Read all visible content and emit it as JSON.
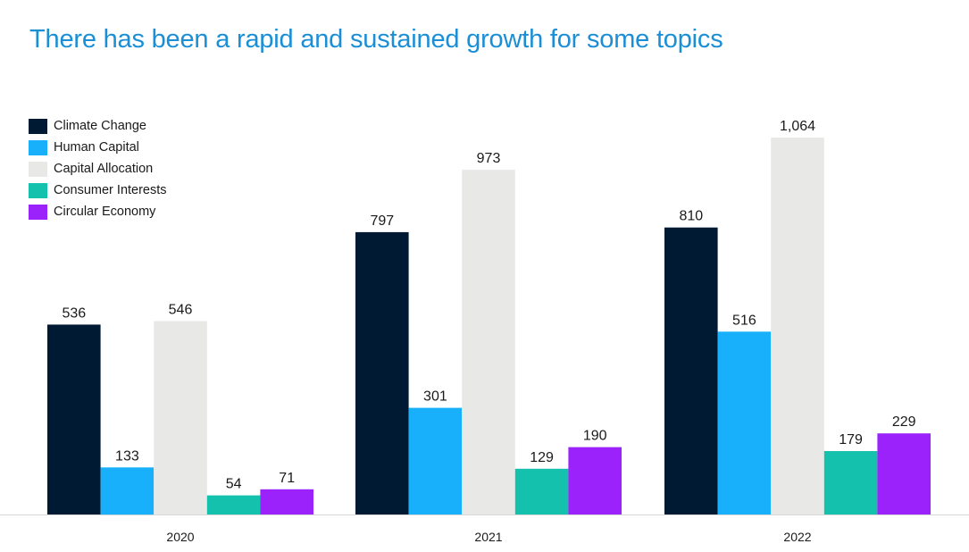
{
  "chart_data": {
    "type": "bar",
    "title": "There has been a rapid and sustained growth for some topics",
    "categories": [
      "2020",
      "2021",
      "2022"
    ],
    "series": [
      {
        "name": "Climate Change",
        "color": "#011a33",
        "values": [
          536,
          797,
          810
        ],
        "labels": [
          "536",
          "797",
          "810"
        ]
      },
      {
        "name": "Human Capital",
        "color": "#18b0fb",
        "values": [
          133,
          301,
          516
        ],
        "labels": [
          "133",
          "301",
          "516"
        ]
      },
      {
        "name": "Capital Allocation",
        "color": "#e8e9e6",
        "values": [
          546,
          973,
          1064
        ],
        "labels": [
          "546",
          "973",
          "1,064"
        ]
      },
      {
        "name": "Consumer Interests",
        "color": "#14c1ad",
        "values": [
          54,
          129,
          179
        ],
        "labels": [
          "54",
          "129",
          "179"
        ]
      },
      {
        "name": "Circular Economy",
        "color": "#9b22fb",
        "values": [
          71,
          190,
          229
        ],
        "labels": [
          "71",
          "190",
          "229"
        ]
      }
    ],
    "xlabel": "",
    "ylabel": "",
    "ylim": [
      0,
      1064
    ],
    "grid": false,
    "legend_position": "top-left"
  }
}
